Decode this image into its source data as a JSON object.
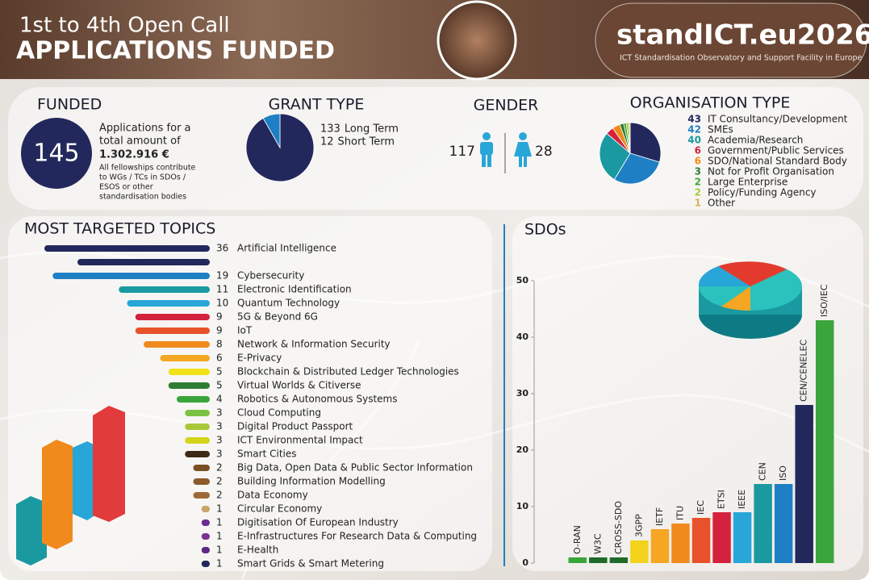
{
  "header": {
    "title_line1": "1st to 4th Open Call",
    "title_line2": "APPLICATIONS FUNDED",
    "logo": "standICT.eu2026",
    "logo_subtitle": "ICT Standardisation Observatory and Support Facility in Europe"
  },
  "funded": {
    "title": "FUNDED",
    "count": 145,
    "text": [
      "Applications for a",
      "total amount of"
    ],
    "amount": "1.302.916 €",
    "note": [
      "All fellowships contribute",
      "to WGs / TCs in SDOs /",
      "ESOS or other",
      "standardisation bodies"
    ]
  },
  "gender": {
    "title": "GENDER",
    "male": 117,
    "female": 28
  },
  "chart_data": [
    {
      "type": "pie",
      "title": "GRANT TYPE",
      "categories": [
        "Long Term",
        "Short Term"
      ],
      "values": [
        133,
        12
      ],
      "colors": [
        "#23285c",
        "#1f7fc4"
      ]
    },
    {
      "type": "pie",
      "title": "ORGANISATION TYPE",
      "categories": [
        "IT Consultancy/Development",
        "SMEs",
        "Academia/Research",
        "Government/Public Services",
        "SDO/National Standard Body",
        "Not for Profit Organisation",
        "Large Enterprise",
        "Policy/Funding Agency",
        "Other"
      ],
      "values": [
        43,
        42,
        40,
        6,
        6,
        3,
        2,
        2,
        1
      ],
      "colors": [
        "#23285c",
        "#1f7fc4",
        "#1a9aa0",
        "#d4213d",
        "#f08a1c",
        "#2e7d32",
        "#3aa53a",
        "#a8c83a",
        "#d9b25a"
      ]
    },
    {
      "type": "bar",
      "orientation": "horizontal",
      "title": "MOST TARGETED TOPICS",
      "categories": [
        "Artificial Intelligence",
        "Cybersecurity",
        "Electronic Identification",
        "Quantum Technology",
        "5G & Beyond 6G",
        "IoT",
        "Network & Information Security",
        "E-Privacy",
        "Blockchain & Distributed Ledger Technologies",
        "Virtual Worlds & Citiverse",
        "Robotics & Autonomous Systems",
        "Cloud Computing",
        "Digital Product Passport",
        "ICT Environmental Impact",
        "Smart Cities",
        "Big Data, Open Data & Public Sector Information",
        "Building Information Modelling",
        "Data Economy",
        "Circular Economy",
        "Digitisation Of European Industry",
        "E-Infrastructures For Research Data & Computing",
        "E-Health",
        "Smart Grids & Smart Metering"
      ],
      "values": [
        36,
        19,
        11,
        10,
        9,
        9,
        8,
        6,
        5,
        5,
        4,
        3,
        3,
        3,
        3,
        2,
        2,
        2,
        1,
        1,
        1,
        1,
        1
      ],
      "colors": [
        "#23285c",
        "#1f7fc4",
        "#1a9aa0",
        "#29a6d8",
        "#d4213d",
        "#e8522a",
        "#f08a1c",
        "#f5a623",
        "#f2e21a",
        "#2e7d32",
        "#3aa53a",
        "#7cc242",
        "#a8c83a",
        "#d4d41a",
        "#3e2a14",
        "#7a4f24",
        "#8a5a2b",
        "#9c6a38",
        "#c9a36a",
        "#6a2c91",
        "#7b3294",
        "#5b2a86",
        "#23285c"
      ]
    },
    {
      "type": "bar",
      "orientation": "vertical",
      "title": "SDOs",
      "categories": [
        "O-RAN",
        "W3C",
        "CROSS-SDO",
        "3GPP",
        "IETF",
        "ITU",
        "IEC",
        "ETSI",
        "IEEE",
        "CEN",
        "ISO",
        "CEN/CENELEC",
        "ISO/IEC"
      ],
      "values": [
        1,
        1,
        1,
        4,
        6,
        7,
        8,
        9,
        9,
        14,
        14,
        28,
        43
      ],
      "colors": [
        "#3aa53a",
        "#1f6b2a",
        "#1f6b2a",
        "#f2d21a",
        "#f5a623",
        "#f08a1c",
        "#e8522a",
        "#d4213d",
        "#29a6d8",
        "#1a9aa0",
        "#1f7fc4",
        "#23285c",
        "#3aa53a"
      ],
      "ylim": [
        0,
        50
      ],
      "yticks": [
        0,
        10,
        20,
        30,
        40,
        50
      ]
    }
  ]
}
